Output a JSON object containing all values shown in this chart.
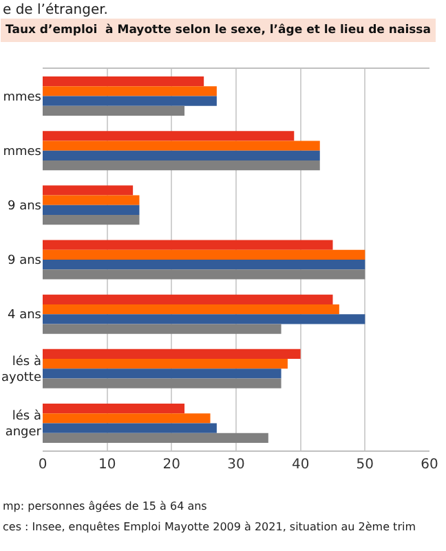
{
  "chart_data": {
    "type": "bar",
    "orientation": "horizontal",
    "title": "Taux d’emploi  à Mayotte selon le sexe, l’âge et le lieu de naissa",
    "categories": [
      "mmes",
      "mmes",
      "9 ans",
      "9 ans",
      "4 ans",
      "lés à\nayotte",
      "lés à\nanger"
    ],
    "series": [
      {
        "color": "#e8321f",
        "values": [
          25,
          39,
          14,
          45,
          45,
          40,
          22
        ]
      },
      {
        "color": "#ff6600",
        "values": [
          27,
          43,
          15,
          50,
          46,
          38,
          26
        ]
      },
      {
        "color": "#335c99",
        "values": [
          27,
          43,
          15,
          50,
          50,
          37,
          27
        ]
      },
      {
        "color": "#808080",
        "values": [
          22,
          43,
          15,
          50,
          37,
          37,
          35
        ]
      }
    ],
    "xlim": [
      0,
      60
    ],
    "xticks": [
      0,
      10,
      20,
      30,
      40,
      50,
      60
    ],
    "grid": "x",
    "legend": false,
    "annotations": [
      "e de l’étranger.",
      "mp: personnes âgées de 15 à 64 ans",
      "ces : Insee, enquêtes Emploi Mayotte 2009 à 2021, situation au 2ème trim"
    ]
  }
}
